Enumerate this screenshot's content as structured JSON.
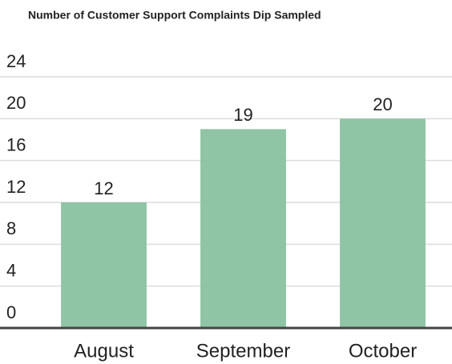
{
  "chart_data": {
    "type": "bar",
    "title": "Number of Customer Support Complaints Dip Sampled",
    "categories": [
      "August",
      "September",
      "October"
    ],
    "values": [
      12,
      19,
      20
    ],
    "color": "#8fc4a4",
    "ylim": [
      0,
      24
    ],
    "yticks": [
      0,
      4,
      8,
      12,
      16,
      20,
      24
    ],
    "grid": true
  }
}
